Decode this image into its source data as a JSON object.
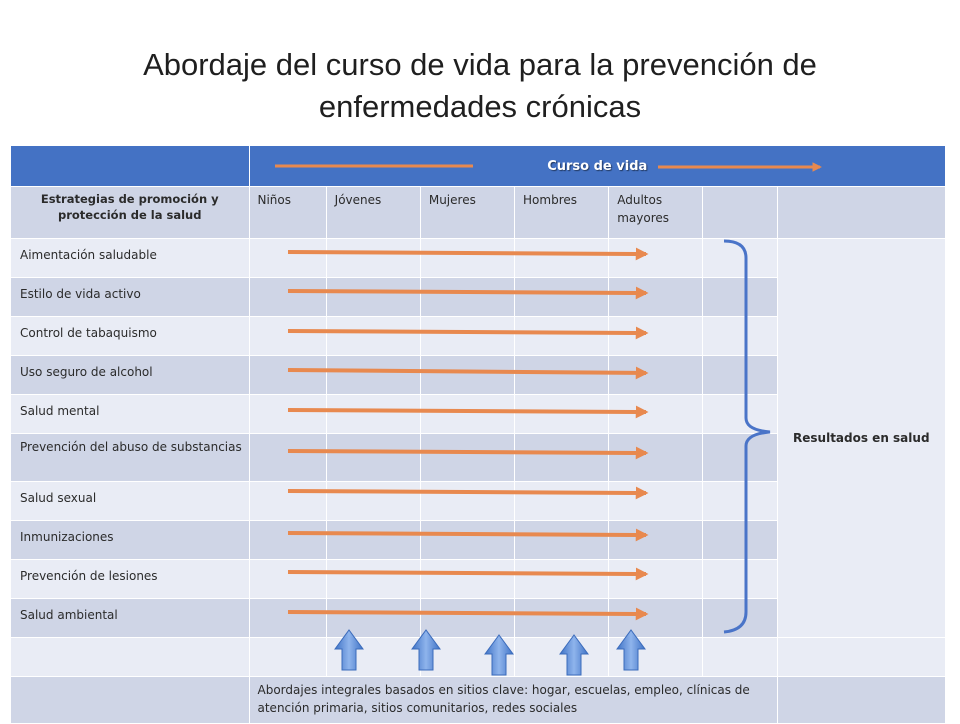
{
  "slide": {
    "title_line1": "Abordaje del curso de vida  para la prevención de",
    "title_line2": "enfermedades crónicas"
  },
  "table": {
    "header": {
      "curso_de_vida": "Curso de vida"
    },
    "strategy_header": "Estrategias de promoción y protección de la salud",
    "groups": [
      "Niños",
      "Jóvenes",
      "Mujeres",
      "Hombres",
      "Adultos mayores"
    ],
    "strategies": [
      "Aimentación saludable",
      "Estilo de vida activo",
      "Control de tabaquismo",
      "Uso seguro de alcohol",
      "Salud mental",
      "Prevención del abuso de substancias",
      "Salud sexual",
      "Inmunizaciones",
      "Prevención de lesiones",
      "Salud ambiental"
    ],
    "outcome": "Resultados en salud",
    "footer": "Abordajes integrales basados en sitios clave: hogar, escuelas, empleo, clínicas de atención primaria, sitios comunitarios, redes sociales"
  },
  "colors": {
    "header_blue": "#4472c4",
    "row_dark": "#cfd5e6",
    "row_light": "#e9ecf5",
    "arrow_orange": "#e8894f",
    "up_arrow_blue": "#5b8fd6",
    "brace_blue": "#4a74c8"
  }
}
